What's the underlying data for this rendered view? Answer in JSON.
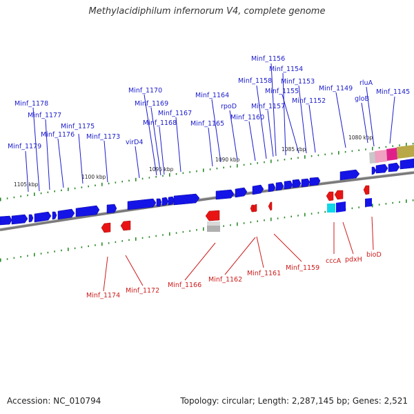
{
  "title": "Methylacidiphilum infernorum V4, complete genome",
  "footer": {
    "accession": "Accession: NC_010794",
    "summary": "Topology: circular; Length: 2,287,145 bp; Genes: 2,521"
  },
  "colors": {
    "forward_gene": "#1010e0",
    "reverse_gene": "#e01010",
    "top_label": "#1a1acc",
    "bottom_label": "#cc1a1a",
    "backbone": "#808080",
    "tick": "#2a8a2a"
  },
  "kbp_labels": [
    "1105 kbp",
    "1100 kbp",
    "1095 kbp",
    "1090 kbp",
    "1085 kbp",
    "1080 kbp"
  ],
  "top_labels": [
    "Minf_1156",
    "Minf_1154",
    "Minf_1158",
    "Minf_1153",
    "Minf_1170",
    "Minf_1149",
    "rluA",
    "Minf_1155",
    "Minf_1145",
    "Minf_1164",
    "gloB",
    "Minf_1178",
    "Minf_1169",
    "rpoD",
    "Minf_1157",
    "Minf_1152",
    "Minf_1167",
    "Minf_1177",
    "Minf_1160",
    "Minf_1168",
    "Minf_1165",
    "Minf_1175",
    "Minf_1176",
    "Minf_1173",
    "virD4",
    "Minf_1179"
  ],
  "bottom_labels": [
    "cccA",
    "pdxH",
    "bioD",
    "Minf_1159",
    "Minf_1161",
    "Minf_1162",
    "Minf_1166",
    "Minf_1172",
    "Minf_1174"
  ]
}
